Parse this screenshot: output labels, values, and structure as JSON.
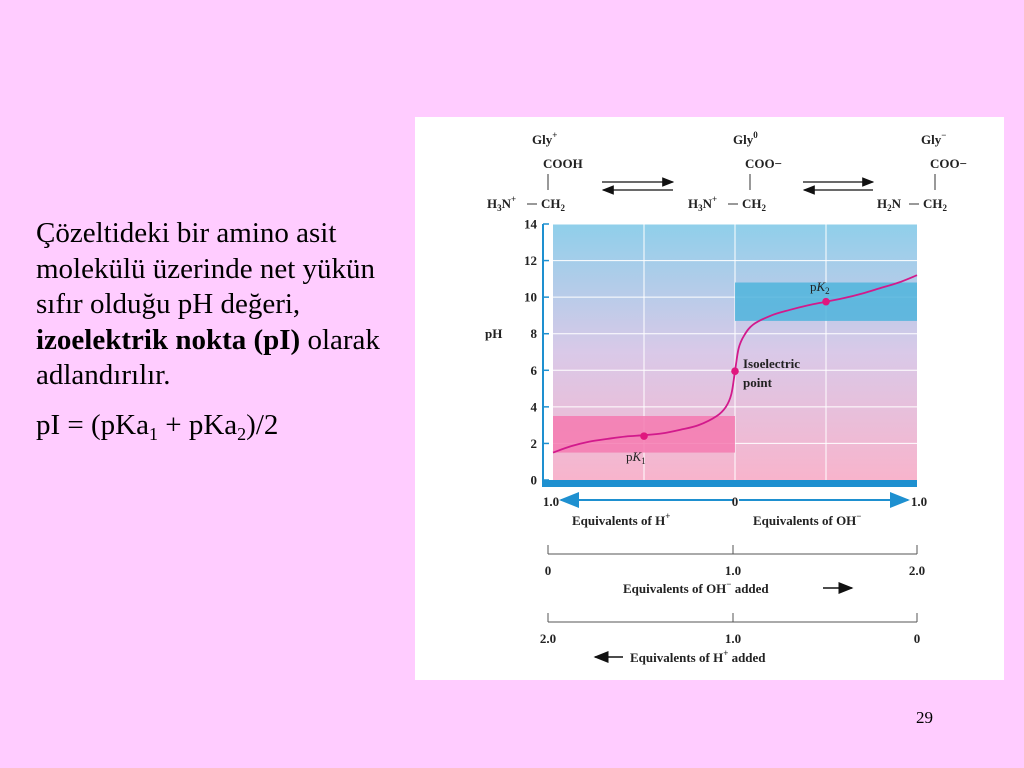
{
  "slide": {
    "text_part1": "Çözeltideki bir amino asit molekülü üzerinde net yükün sıfır olduğu pH değeri, ",
    "text_bold": "izoelektrik nokta (pI)",
    "text_part2": " olarak adlandırılır.",
    "formula": {
      "prefix": "pI = (pKa",
      "sub1": "1",
      "mid": " + pKa",
      "sub2": "2",
      "suffix": ")/2"
    },
    "page_number": "29"
  },
  "figure": {
    "species": [
      {
        "name": "Gly",
        "charge": "+",
        "top": "COOH",
        "left": "H3N+",
        "bottom": "CH2"
      },
      {
        "name": "Gly",
        "charge": "0",
        "top": "COO−",
        "left": "H3N+",
        "bottom": "CH2"
      },
      {
        "name": "Gly",
        "charge": "−",
        "top": "COO−",
        "left": "H2N",
        "bottom": "CH2"
      }
    ],
    "annotations": {
      "pk1": "pK1",
      "pk2": "pK2",
      "isoelectric_line1": "Isoelectric",
      "isoelectric_line2": "point"
    },
    "colors": {
      "curve": "#d21a8c",
      "point": "#e0177e",
      "sky_top": "#8fcfea",
      "pink_bottom": "#f8b4cc",
      "pk1_band": "#f47ab0",
      "pk2_band": "#4fb4dc",
      "axis_bar": "#1e90d0"
    }
  },
  "chart_data": {
    "type": "line",
    "ylabel": "pH",
    "ylim": [
      0,
      14
    ],
    "yticks": [
      0,
      2,
      4,
      6,
      8,
      10,
      12,
      14
    ],
    "x_axis_top": {
      "labels": [
        "1.0",
        "0",
        "1.0"
      ],
      "left_caption": "Equivalents of H+",
      "right_caption": "Equivalents of OH−"
    },
    "x_axis_oh_added": {
      "labels": [
        "0",
        "1.0",
        "2.0"
      ],
      "caption": "Equivalents of OH− added"
    },
    "x_axis_h_added": {
      "labels": [
        "2.0",
        "1.0",
        "0"
      ],
      "caption": "Equivalents of H+ added"
    },
    "xlim_oh_added": [
      0,
      2.0
    ],
    "series": [
      {
        "x": [
          0.0,
          0.1,
          0.2,
          0.3,
          0.4,
          0.5,
          0.6,
          0.7,
          0.8,
          0.9,
          0.95,
          0.98,
          1.0,
          1.02,
          1.05,
          1.1,
          1.2,
          1.3,
          1.4,
          1.5,
          1.6,
          1.7,
          1.8,
          1.9,
          2.0
        ],
        "y": [
          1.5,
          1.85,
          2.1,
          2.25,
          2.38,
          2.45,
          2.55,
          2.75,
          3.0,
          3.5,
          4.0,
          4.7,
          5.95,
          7.2,
          7.9,
          8.5,
          9.0,
          9.3,
          9.55,
          9.75,
          9.95,
          10.2,
          10.5,
          10.8,
          11.2
        ]
      }
    ],
    "points": [
      {
        "label": "pK1",
        "x": 0.5,
        "y": 2.4
      },
      {
        "label": "Isoelectric point",
        "x": 1.0,
        "y": 5.95
      },
      {
        "label": "pK2",
        "x": 1.5,
        "y": 9.75
      }
    ],
    "bands": [
      {
        "label": "pK1",
        "x": [
          0.0,
          1.0
        ],
        "y": [
          1.5,
          3.5
        ]
      },
      {
        "label": "pK2",
        "x": [
          1.0,
          2.0
        ],
        "y": [
          8.7,
          10.8
        ]
      }
    ]
  }
}
